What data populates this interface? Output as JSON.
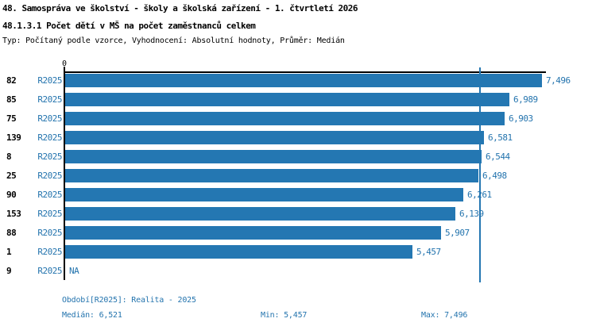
{
  "header": {
    "title": "48. Samospráva ve školství - školy a školská zařízení - 1. čtvrtletí 2026",
    "subtitle": "48.1.3.1 Počet dětí v MŠ na počet zaměstnanců celkem",
    "meta": "Typ: Počítaný podle vzorce, Vyhodnocení: Absolutní hodnoty, Průměr: Medián"
  },
  "colors": {
    "bar": "#2477b2",
    "blue_text": "#2474ae",
    "axis": "#000000"
  },
  "chart_data": {
    "type": "bar",
    "orientation": "horizontal",
    "series_label": "R2025",
    "categories": [
      "82",
      "85",
      "75",
      "139",
      "8",
      "25",
      "90",
      "153",
      "88",
      "1",
      "9"
    ],
    "values": [
      7496,
      6989,
      6903,
      6581,
      6544,
      6498,
      6261,
      6139,
      5907,
      5457,
      null
    ],
    "value_labels": [
      "7,496",
      "6,989",
      "6,903",
      "6,581",
      "6,544",
      "6,498",
      "6,261",
      "6,139",
      "5,907",
      "5,457",
      "NA"
    ],
    "xlim": [
      0,
      7496
    ],
    "zero_tick_label": "0",
    "median_value": 6521,
    "median_line": true,
    "grid": false,
    "legend": "none"
  },
  "footer": {
    "period": "Období[R2025]: Realita - 2025",
    "median": "Medián: 6,521",
    "min": "Min: 5,457",
    "max": "Max: 7,496"
  }
}
